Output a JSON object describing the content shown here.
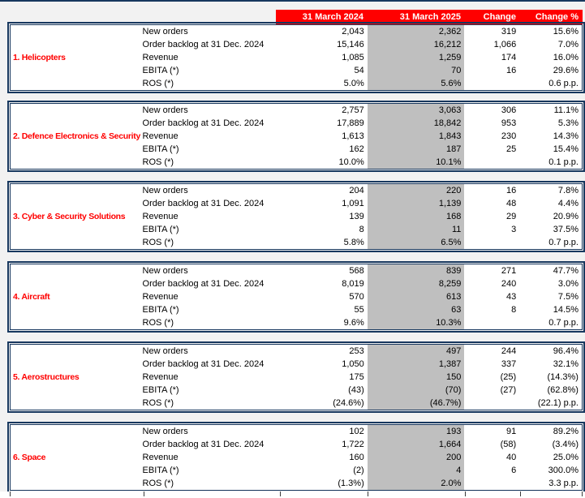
{
  "page": {
    "background_color": "#F2F2F2",
    "top_rule_color": "#17375E"
  },
  "table": {
    "header": {
      "background_color": "#FF0000",
      "text_color": "#FFFFFF",
      "columns": [
        "31 March 2024",
        "31 March 2025",
        "Change",
        "Change %"
      ]
    },
    "highlight_column": "31 March 2025",
    "highlight_color": "#BFBFBF",
    "border_color": "#17375E",
    "segment_label_color": "#FF0000",
    "metric_labels": [
      "New orders",
      "Order backlog at 31 Dec. 2024",
      "Revenue",
      "EBITA (*)",
      "ROS (*)"
    ],
    "segments": [
      {
        "label": "1. Helicopters",
        "rows": [
          {
            "metric": "New orders",
            "v2024": "2,043",
            "v2025": "2,362",
            "change": "319",
            "change_pct": "15.6%"
          },
          {
            "metric": "Order backlog at 31 Dec. 2024",
            "v2024": "15,146",
            "v2025": "16,212",
            "change": "1,066",
            "change_pct": "7.0%"
          },
          {
            "metric": "Revenue",
            "v2024": "1,085",
            "v2025": "1,259",
            "change": "174",
            "change_pct": "16.0%"
          },
          {
            "metric": "EBITA (*)",
            "v2024": "54",
            "v2025": "70",
            "change": "16",
            "change_pct": "29.6%"
          },
          {
            "metric": "ROS (*)",
            "v2024": "5.0%",
            "v2025": "5.6%",
            "change": "",
            "change_pct": "0.6 p.p."
          }
        ]
      },
      {
        "label": "2. Defence Electronics & Security",
        "rows": [
          {
            "metric": "New orders",
            "v2024": "2,757",
            "v2025": "3,063",
            "change": "306",
            "change_pct": "11.1%"
          },
          {
            "metric": "Order backlog at 31 Dec. 2024",
            "v2024": "17,889",
            "v2025": "18,842",
            "change": "953",
            "change_pct": "5.3%"
          },
          {
            "metric": "Revenue",
            "v2024": "1,613",
            "v2025": "1,843",
            "change": "230",
            "change_pct": "14.3%"
          },
          {
            "metric": "EBITA (*)",
            "v2024": "162",
            "v2025": "187",
            "change": "25",
            "change_pct": "15.4%"
          },
          {
            "metric": "ROS (*)",
            "v2024": "10.0%",
            "v2025": "10.1%",
            "change": "",
            "change_pct": "0.1 p.p."
          }
        ]
      },
      {
        "label": "3. Cyber & Security Solutions",
        "rows": [
          {
            "metric": "New orders",
            "v2024": "204",
            "v2025": "220",
            "change": "16",
            "change_pct": "7.8%"
          },
          {
            "metric": "Order backlog at 31 Dec. 2024",
            "v2024": "1,091",
            "v2025": "1,139",
            "change": "48",
            "change_pct": "4.4%"
          },
          {
            "metric": "Revenue",
            "v2024": "139",
            "v2025": "168",
            "change": "29",
            "change_pct": "20.9%"
          },
          {
            "metric": "EBITA (*)",
            "v2024": "8",
            "v2025": "11",
            "change": "3",
            "change_pct": "37.5%"
          },
          {
            "metric": "ROS (*)",
            "v2024": "5.8%",
            "v2025": "6.5%",
            "change": "",
            "change_pct": "0.7 p.p."
          }
        ]
      },
      {
        "label": "4. Aircraft",
        "rows": [
          {
            "metric": "New orders",
            "v2024": "568",
            "v2025": "839",
            "change": "271",
            "change_pct": "47.7%"
          },
          {
            "metric": "Order backlog at 31 Dec. 2024",
            "v2024": "8,019",
            "v2025": "8,259",
            "change": "240",
            "change_pct": "3.0%"
          },
          {
            "metric": "Revenue",
            "v2024": "570",
            "v2025": "613",
            "change": "43",
            "change_pct": "7.5%"
          },
          {
            "metric": "EBITA (*)",
            "v2024": "55",
            "v2025": "63",
            "change": "8",
            "change_pct": "14.5%"
          },
          {
            "metric": "ROS (*)",
            "v2024": "9.6%",
            "v2025": "10.3%",
            "change": "",
            "change_pct": "0.7 p.p."
          }
        ]
      },
      {
        "label": "5. Aerostructures",
        "rows": [
          {
            "metric": "New orders",
            "v2024": "253",
            "v2025": "497",
            "change": "244",
            "change_pct": "96.4%"
          },
          {
            "metric": "Order backlog at 31 Dec. 2024",
            "v2024": "1,050",
            "v2025": "1,387",
            "change": "337",
            "change_pct": "32.1%"
          },
          {
            "metric": "Revenue",
            "v2024": "175",
            "v2025": "150",
            "change": "(25)",
            "change_pct": "(14.3%)"
          },
          {
            "metric": "EBITA (*)",
            "v2024": "(43)",
            "v2025": "(70)",
            "change": "(27)",
            "change_pct": "(62.8%)"
          },
          {
            "metric": "ROS (*)",
            "v2024": "(24.6%)",
            "v2025": "(46.7%)",
            "change": "",
            "change_pct": "(22.1) p.p."
          }
        ]
      },
      {
        "label": "6. Space",
        "rows": [
          {
            "metric": "New orders",
            "v2024": "102",
            "v2025": "193",
            "change": "91",
            "change_pct": "89.2%"
          },
          {
            "metric": "Order backlog at 31 Dec. 2024",
            "v2024": "1,722",
            "v2025": "1,664",
            "change": "(58)",
            "change_pct": "(3.4%)"
          },
          {
            "metric": "Revenue",
            "v2024": "160",
            "v2025": "200",
            "change": "40",
            "change_pct": "25.0%"
          },
          {
            "metric": "EBITA (*)",
            "v2024": "(2)",
            "v2025": "4",
            "change": "6",
            "change_pct": "300.0%"
          },
          {
            "metric": "ROS (*)",
            "v2024": "(1.3%)",
            "v2025": "2.0%",
            "change": "",
            "change_pct": "3.3 p.p."
          }
        ]
      }
    ]
  }
}
